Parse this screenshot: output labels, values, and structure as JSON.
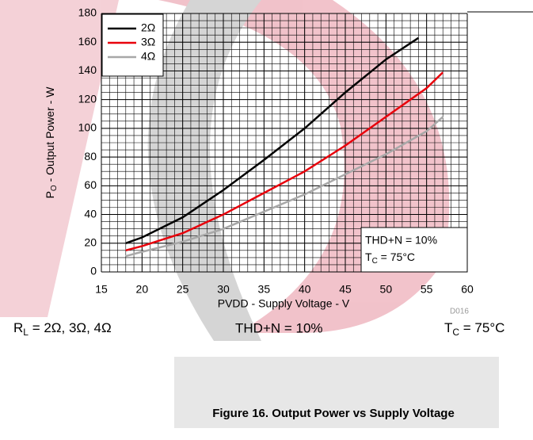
{
  "chart_data": {
    "type": "line",
    "x_label": "PVDD - Supply Voltage - V",
    "y_label": {
      "main": "P",
      "sub": "O",
      "rest": " - Output Power - W"
    },
    "figure_id": "D016",
    "caption": "Figure 16. Output Power vs Supply Voltage",
    "box_note": {
      "line1": "THD+N = 10%",
      "line2": {
        "main": "T",
        "sub": "C",
        "rest": " = 75°C"
      }
    },
    "conditions": {
      "load": {
        "main": "R",
        "sub": "L",
        "rest": " = 2Ω, 3Ω, 4Ω"
      },
      "thd": "THD+N = 10%",
      "temp": {
        "main": "T",
        "sub": "C",
        "rest": " = 75°C"
      }
    },
    "xlim": [
      15,
      60
    ],
    "xticks": [
      15,
      20,
      25,
      30,
      35,
      40,
      45,
      50,
      55,
      60
    ],
    "ylim": [
      0,
      180
    ],
    "yticks": [
      0,
      20,
      40,
      60,
      80,
      100,
      120,
      140,
      160,
      180
    ],
    "grid": true,
    "minor_grid": {
      "x": 1,
      "y": 5
    },
    "legend": "top-left",
    "series": [
      {
        "name": "2Ω",
        "color": "#000000",
        "x": [
          18,
          20,
          25,
          30,
          35,
          40,
          45,
          50,
          54
        ],
        "values": [
          20,
          24,
          38,
          57,
          78,
          100,
          125,
          148,
          163
        ]
      },
      {
        "name": "3Ω",
        "color": "#e8000b",
        "x": [
          18,
          20,
          25,
          30,
          35,
          40,
          45,
          50,
          55,
          57
        ],
        "values": [
          15,
          18,
          27,
          40,
          55,
          70,
          88,
          108,
          128,
          139
        ]
      },
      {
        "name": "4Ω",
        "color": "#a8a8a8",
        "x": [
          18,
          20,
          25,
          30,
          35,
          40,
          45,
          50,
          55,
          57
        ],
        "values": [
          11,
          14,
          21,
          30,
          42,
          54,
          68,
          82,
          98,
          108
        ]
      }
    ]
  }
}
